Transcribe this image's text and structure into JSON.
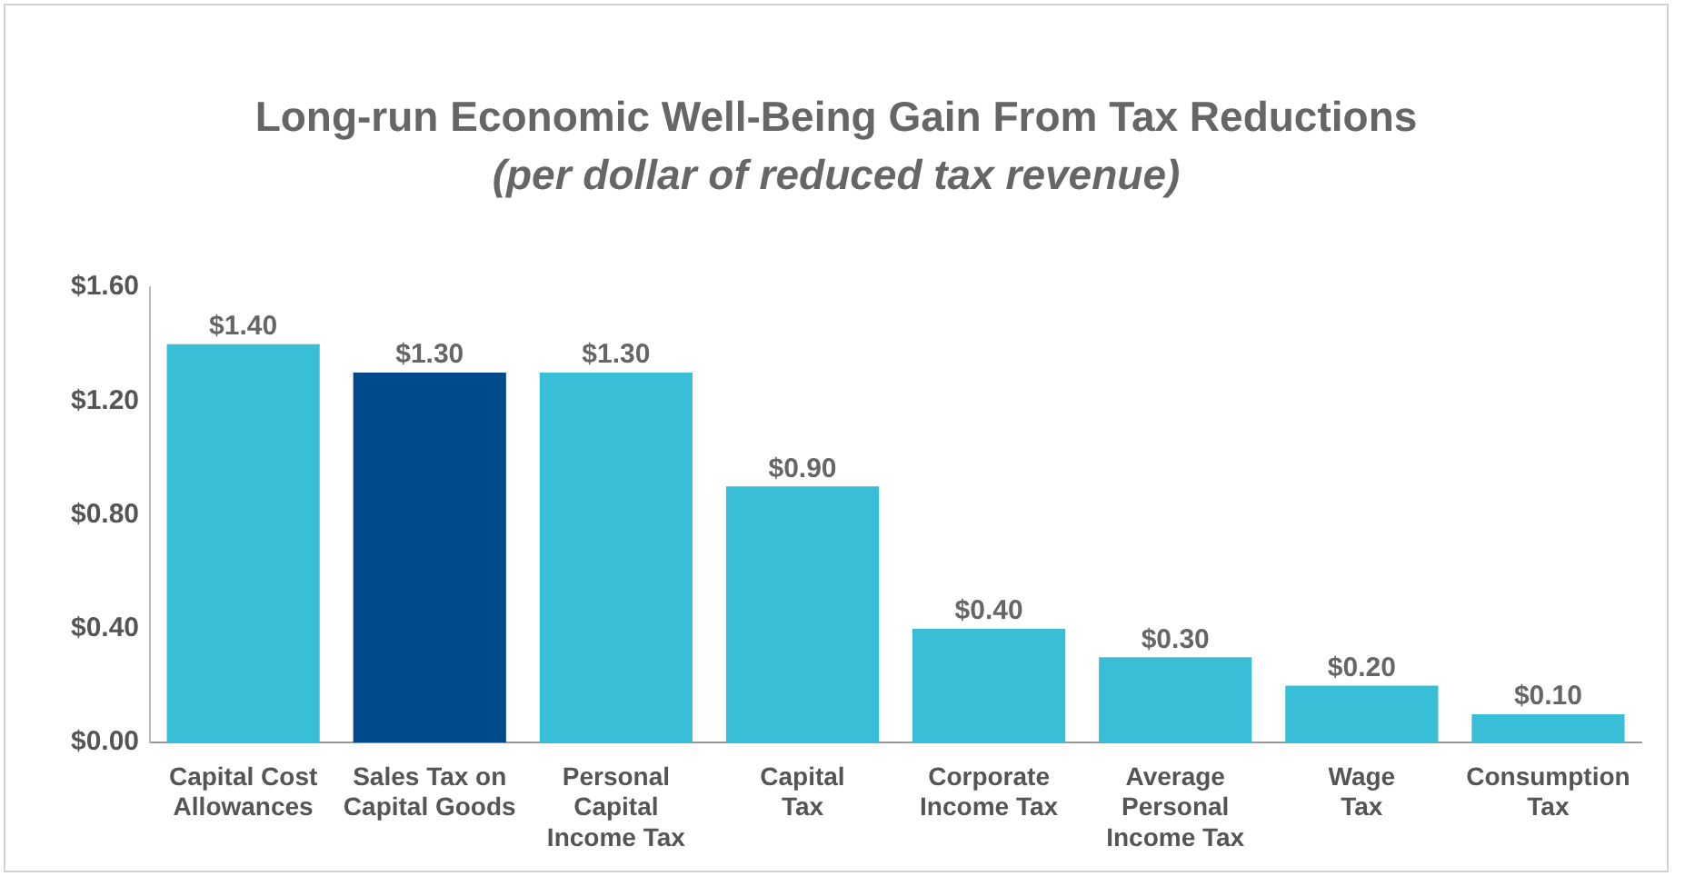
{
  "chart_data": {
    "type": "bar",
    "title": "Long-run Economic Well-Being Gain From Tax Reductions",
    "subtitle": "(per dollar of reduced tax revenue)",
    "categories": [
      "Capital Cost\nAllowances",
      "Sales Tax on\nCapital Goods",
      "Personal\nCapital\nIncome Tax",
      "Capital\nTax",
      "Corporate Income Tax",
      "Average\nPersonal\nIncome Tax",
      "Wage\nTax",
      "Consumption\nTax"
    ],
    "values": [
      1.4,
      1.3,
      1.3,
      0.9,
      0.4,
      0.3,
      0.2,
      0.1
    ],
    "colors": [
      "#38bfd7",
      "#00498a",
      "#38bfd7",
      "#38bfd7",
      "#38bfd7",
      "#38bfd7",
      "#38bfd7",
      "#38bfd7"
    ],
    "value_labels": [
      "$1.40",
      "$1.30",
      "$1.30",
      "$0.90",
      "$0.40",
      "$0.30",
      "$0.20",
      "$0.10"
    ],
    "ylim": [
      0,
      1.6
    ],
    "yticks": [
      {
        "value": 0,
        "label": "$0.00"
      },
      {
        "value": 0.4,
        "label": "$0.40"
      },
      {
        "value": 0.8,
        "label": "$0.80"
      },
      {
        "value": 1.2,
        "label": "$1.20"
      },
      {
        "value": 1.6,
        "label": "$1.60"
      }
    ],
    "grid": false,
    "legend": false
  }
}
